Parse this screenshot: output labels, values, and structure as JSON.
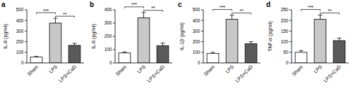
{
  "chart_data": [
    {
      "type": "bar",
      "title": "a",
      "y_label": "IL-8 (pg/ml)",
      "categories": [
        "Sham",
        "LPS",
        "LPS+CaD"
      ],
      "values": [
        55,
        375,
        165
      ],
      "errors": [
        6,
        45,
        20
      ],
      "colors": [
        "#ffffff",
        "#c8c8c8",
        "#5a5a5a"
      ],
      "ylim": [
        0,
        500
      ],
      "yticks": [
        0,
        100,
        200,
        300,
        400,
        500
      ],
      "grid": false,
      "annotations": [
        {
          "label": "***",
          "between": [
            "Sham",
            "LPS"
          ]
        },
        {
          "label": "**",
          "between": [
            "LPS",
            "LPS+CaD"
          ]
        }
      ]
    },
    {
      "type": "bar",
      "title": "b",
      "y_label": "IL-6 (pg/ml)",
      "categories": [
        "Sham",
        "LPS",
        "LPS+CaD"
      ],
      "values": [
        75,
        340,
        130
      ],
      "errors": [
        8,
        40,
        20
      ],
      "colors": [
        "#ffffff",
        "#c8c8c8",
        "#5a5a5a"
      ],
      "ylim": [
        0,
        400
      ],
      "yticks": [
        0,
        100,
        200,
        300,
        400
      ],
      "grid": false,
      "annotations": [
        {
          "label": "***",
          "between": [
            "Sham",
            "LPS"
          ]
        },
        {
          "label": "**",
          "between": [
            "LPS",
            "LPS+CaD"
          ]
        }
      ]
    },
    {
      "type": "bar",
      "title": "c",
      "y_label": "IL-1β (pg/ml)",
      "categories": [
        "Sham",
        "LPS",
        "LPS+CaD"
      ],
      "values": [
        90,
        410,
        180
      ],
      "errors": [
        10,
        40,
        20
      ],
      "colors": [
        "#ffffff",
        "#c8c8c8",
        "#5a5a5a"
      ],
      "ylim": [
        0,
        500
      ],
      "yticks": [
        0,
        100,
        200,
        300,
        400,
        500
      ],
      "grid": false,
      "annotations": [
        {
          "label": "***",
          "between": [
            "Sham",
            "LPS"
          ]
        },
        {
          "label": "**",
          "between": [
            "LPS",
            "LPS+CaD"
          ]
        }
      ]
    },
    {
      "type": "bar",
      "title": "d",
      "y_label": "TNF-α (pg/ml)",
      "categories": [
        "Sham",
        "LPS",
        "LPS+CaD"
      ],
      "values": [
        50,
        205,
        105
      ],
      "errors": [
        8,
        20,
        12
      ],
      "colors": [
        "#ffffff",
        "#c8c8c8",
        "#5a5a5a"
      ],
      "ylim": [
        0,
        250
      ],
      "yticks": [
        0,
        50,
        100,
        150,
        200,
        250
      ],
      "grid": false,
      "annotations": [
        {
          "label": "***",
          "between": [
            "Sham",
            "LPS"
          ]
        },
        {
          "label": "**",
          "between": [
            "LPS",
            "LPS+CaD"
          ]
        }
      ]
    }
  ]
}
